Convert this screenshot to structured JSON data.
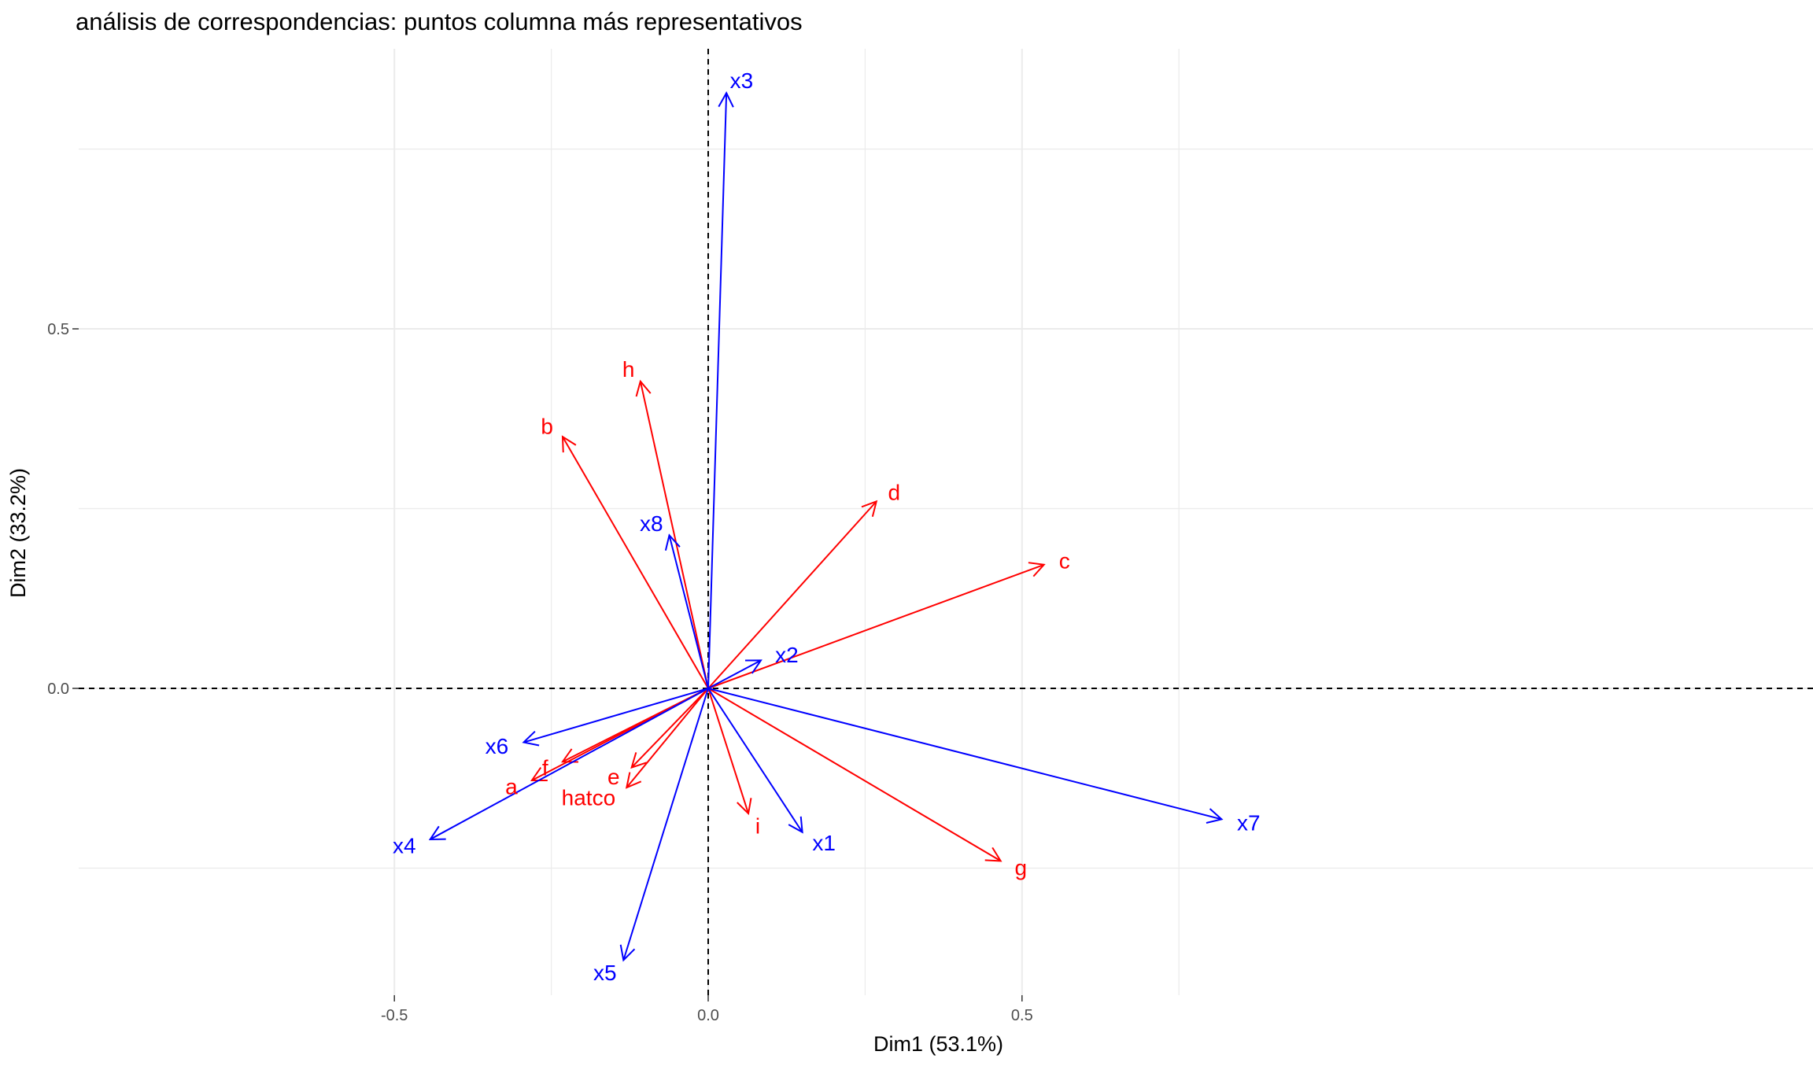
{
  "chart_data": {
    "type": "scatter",
    "title": "análisis de correspondencias: puntos columna más representativos",
    "xlabel": "Dim1 (53.1%)",
    "ylabel": "Dim2 (33.2%)",
    "xlim": [
      -0.5,
      0.88
    ],
    "ylim": [
      -0.425,
      0.83
    ],
    "x_ticks": [
      {
        "value": -0.5,
        "label": "-0.5"
      },
      {
        "value": 0.0,
        "label": "0.0"
      },
      {
        "value": 0.5,
        "label": "0.5"
      }
    ],
    "y_ticks": [
      {
        "value": 0.0,
        "label": "0.0"
      },
      {
        "value": 0.5,
        "label": "0.5"
      }
    ],
    "minor_gridlines_x": [
      -0.25,
      0.25,
      0.75
    ],
    "minor_gridlines_y": [
      -0.25,
      0.25,
      0.75
    ],
    "grid": true,
    "reference_lines": {
      "x": 0,
      "y": 0,
      "style": "dashed"
    },
    "colors": {
      "row_points": "#ff0000",
      "column_points": "#0000ff",
      "grid": "#ebebeb",
      "reference": "#000000"
    },
    "series": [
      {
        "color": "#ff0000",
        "points": [
          {
            "label": "a",
            "x": -0.281,
            "y": -0.128
          },
          {
            "label": "b",
            "x": -0.232,
            "y": 0.35
          },
          {
            "label": "c",
            "x": 0.535,
            "y": 0.172
          },
          {
            "label": "d",
            "x": 0.268,
            "y": 0.26
          },
          {
            "label": "e",
            "x": -0.122,
            "y": -0.11
          },
          {
            "label": "f",
            "x": -0.232,
            "y": -0.102
          },
          {
            "label": "g",
            "x": 0.466,
            "y": -0.24
          },
          {
            "label": "h",
            "x": -0.108,
            "y": 0.427
          },
          {
            "label": "i",
            "x": 0.064,
            "y": -0.174
          },
          {
            "label": "hatco",
            "x": -0.13,
            "y": -0.138
          }
        ]
      },
      {
        "color": "#0000ff",
        "points": [
          {
            "label": "x1",
            "x": 0.15,
            "y": -0.2
          },
          {
            "label": "x2",
            "x": 0.084,
            "y": 0.039
          },
          {
            "label": "x3",
            "x": 0.029,
            "y": 0.828
          },
          {
            "label": "x4",
            "x": -0.443,
            "y": -0.21
          },
          {
            "label": "x5",
            "x": -0.135,
            "y": -0.378
          },
          {
            "label": "x6",
            "x": -0.294,
            "y": -0.075
          },
          {
            "label": "x7",
            "x": 0.818,
            "y": -0.182
          },
          {
            "label": "x8",
            "x": -0.062,
            "y": 0.213
          }
        ]
      }
    ]
  }
}
